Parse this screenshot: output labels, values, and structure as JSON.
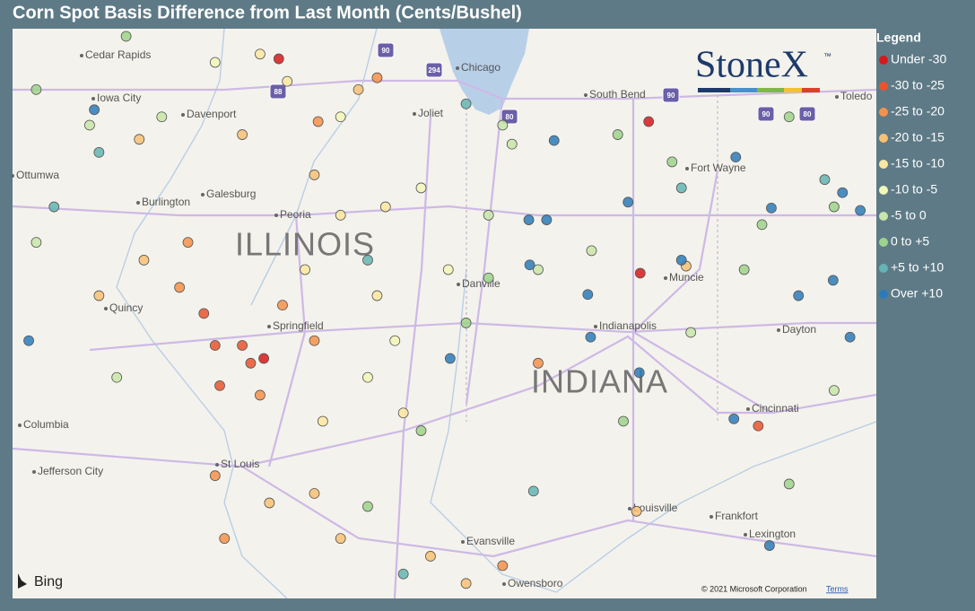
{
  "map": {
    "title": "Corn Spot Basis Difference from Last Month (Cents/Bushel)",
    "legend": {
      "title": "Legend",
      "items": [
        {
          "label": "Under -30",
          "color": "#d7191c"
        },
        {
          "label": "-30 to -25",
          "color": "#e9542f"
        },
        {
          "label": "-25 to -20",
          "color": "#f4924a"
        },
        {
          "label": "-20 to -15",
          "color": "#f8c174"
        },
        {
          "label": "-15 to -10",
          "color": "#fbe7a0"
        },
        {
          "label": "-10 to -5",
          "color": "#f3f7b8"
        },
        {
          "label": "-5 to 0",
          "color": "#c8e6a8"
        },
        {
          "label": "0 to +5",
          "color": "#9dd38b"
        },
        {
          "label": "+5 to +10",
          "color": "#64b5b3"
        },
        {
          "label": "Over +10",
          "color": "#2b7bba"
        }
      ]
    },
    "states": [
      "ILLINOIS",
      "INDIANA"
    ],
    "cities": [
      "Cedar Rapids",
      "Iowa City",
      "Davenport",
      "Galesburg",
      "Burlington",
      "Ottumwa",
      "Peoria",
      "Quincy",
      "Springfield",
      "Columbia",
      "Jefferson City",
      "St Louis",
      "Evansville",
      "Owensboro",
      "Louisville",
      "Frankfort",
      "Lexington",
      "Cincinnati",
      "Dayton",
      "Indianapolis",
      "Muncie",
      "Danville",
      "Fort Wayne",
      "South Bend",
      "Toledo",
      "Chicago",
      "Joliet"
    ],
    "shields": [
      "90",
      "294",
      "88",
      "80",
      "90",
      "90",
      "80"
    ],
    "logo": "StoneX",
    "logo_mark": "™",
    "provider": "Bing",
    "copyright": "© 2021 Microsoft Corporation",
    "terms": "Terms",
    "points": [
      [
        -89.79,
        42.05,
        0
      ],
      [
        -89.95,
        39.52,
        0
      ],
      [
        -85.84,
        41.52,
        0
      ],
      [
        -85.93,
        40.24,
        0
      ],
      [
        -90.18,
        39.63,
        1
      ],
      [
        -90.47,
        39.63,
        1
      ],
      [
        -90.59,
        39.9,
        1
      ],
      [
        -90.42,
        39.29,
        1
      ],
      [
        -90.09,
        39.48,
        1
      ],
      [
        -84.67,
        38.95,
        1
      ],
      [
        -90.76,
        40.5,
        2
      ],
      [
        -90.85,
        40.12,
        2
      ],
      [
        -89.75,
        39.97,
        2
      ],
      [
        -89.41,
        39.67,
        2
      ],
      [
        -89.99,
        39.21,
        2
      ],
      [
        -89.37,
        41.52,
        2
      ],
      [
        -88.74,
        41.89,
        2
      ],
      [
        -90.47,
        38.53,
        2
      ],
      [
        -90.37,
        38.0,
        2
      ],
      [
        -87.4,
        37.77,
        2
      ],
      [
        -87.02,
        39.48,
        2
      ],
      [
        -91.71,
        40.05,
        3
      ],
      [
        -91.28,
        41.37,
        3
      ],
      [
        -90.18,
        41.41,
        3
      ],
      [
        -89.41,
        41.07,
        3
      ],
      [
        -89.89,
        38.3,
        3
      ],
      [
        -89.41,
        38.38,
        3
      ],
      [
        -89.13,
        38.0,
        3
      ],
      [
        -88.17,
        37.85,
        3
      ],
      [
        -87.79,
        37.62,
        3
      ],
      [
        -85.97,
        38.23,
        3
      ],
      [
        -85.44,
        40.3,
        3
      ],
      [
        -91.23,
        40.35,
        3
      ],
      [
        -88.94,
        41.79,
        3
      ],
      [
        -89.13,
        40.73,
        4
      ],
      [
        -88.65,
        40.8,
        4
      ],
      [
        -89.51,
        40.27,
        4
      ],
      [
        -88.74,
        40.05,
        4
      ],
      [
        -89.32,
        38.99,
        4
      ],
      [
        -89.99,
        42.09,
        4
      ],
      [
        -89.7,
        41.86,
        4
      ],
      [
        -88.46,
        39.06,
        4
      ],
      [
        -88.27,
        40.96,
        5
      ],
      [
        -87.98,
        40.27,
        5
      ],
      [
        -88.84,
        39.36,
        5
      ],
      [
        -88.55,
        39.67,
        5
      ],
      [
        -89.13,
        41.56,
        5
      ],
      [
        -90.47,
        42.02,
        5
      ],
      [
        -87.4,
        41.49,
        6
      ],
      [
        -87.3,
        41.33,
        6
      ],
      [
        -87.55,
        40.73,
        6
      ],
      [
        -87.02,
        40.27,
        6
      ],
      [
        -86.45,
        40.43,
        6
      ],
      [
        -91.04,
        41.56,
        6
      ],
      [
        -91.81,
        41.49,
        6
      ],
      [
        -92.38,
        40.5,
        6
      ],
      [
        -83.86,
        39.25,
        6
      ],
      [
        -85.39,
        39.74,
        6
      ],
      [
        -91.52,
        39.36,
        6
      ],
      [
        -87.79,
        39.82,
        7
      ],
      [
        -88.27,
        38.91,
        7
      ],
      [
        -88.84,
        38.27,
        7
      ],
      [
        -87.55,
        40.2,
        7
      ],
      [
        -86.17,
        41.41,
        7
      ],
      [
        -85.59,
        41.18,
        7
      ],
      [
        -84.63,
        40.65,
        7
      ],
      [
        -84.34,
        41.56,
        7
      ],
      [
        -83.86,
        40.8,
        7
      ],
      [
        -84.82,
        40.27,
        7
      ],
      [
        -86.11,
        38.99,
        7
      ],
      [
        -84.34,
        38.46,
        7
      ],
      [
        -92.38,
        41.79,
        7
      ],
      [
        -91.42,
        42.24,
        7
      ],
      [
        -87.79,
        41.67,
        8
      ],
      [
        -92.19,
        40.8,
        8
      ],
      [
        -91.71,
        41.26,
        8
      ],
      [
        -85.49,
        40.96,
        8
      ],
      [
        -83.96,
        41.03,
        8
      ],
      [
        -88.46,
        37.7,
        8
      ],
      [
        -87.07,
        38.4,
        8
      ],
      [
        -88.84,
        40.35,
        8
      ],
      [
        -86.85,
        41.36,
        9
      ],
      [
        -87.12,
        40.69,
        9
      ],
      [
        -86.93,
        40.69,
        9
      ],
      [
        -87.11,
        40.31,
        9
      ],
      [
        -86.49,
        40.06,
        9
      ],
      [
        -86.46,
        39.7,
        9
      ],
      [
        -85.94,
        39.4,
        9
      ],
      [
        -85.49,
        40.35,
        9
      ],
      [
        -84.91,
        41.22,
        9
      ],
      [
        -84.53,
        40.79,
        9
      ],
      [
        -84.24,
        40.05,
        9
      ],
      [
        -83.87,
        40.18,
        9
      ],
      [
        -83.69,
        39.7,
        9
      ],
      [
        -84.93,
        39.01,
        9
      ],
      [
        -84.55,
        37.94,
        9
      ],
      [
        -92.46,
        39.67,
        9
      ],
      [
        -91.76,
        41.62,
        9
      ],
      [
        -86.06,
        40.84,
        9
      ],
      [
        -87.96,
        39.52,
        9
      ],
      [
        -83.77,
        40.92,
        9
      ],
      [
        -83.58,
        40.77,
        9
      ]
    ]
  }
}
